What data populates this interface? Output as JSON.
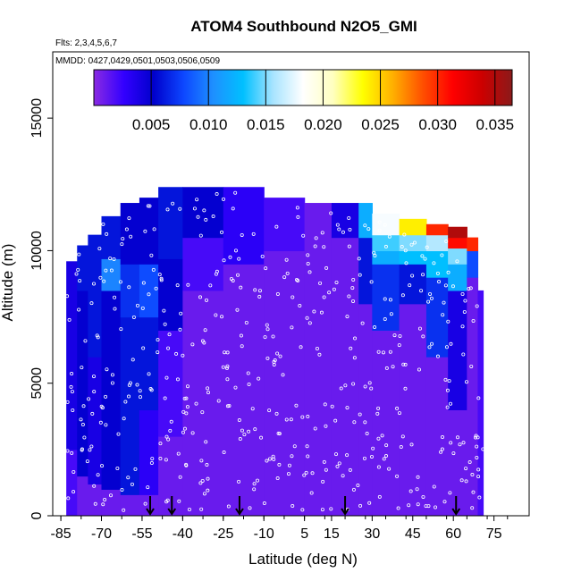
{
  "chart_data": {
    "type": "heatmap",
    "title": "ATOM4 Southbound N2O5_GMI",
    "subtitle_flights": "Flts: 2,3,4,5,6,7",
    "subtitle_dates": "MMDD: 0427,0429,0501,0503,0506,0509",
    "xlabel": "Latitude (deg N)",
    "ylabel": "Altitude (m)",
    "xlim": [
      -88,
      88
    ],
    "ylim": [
      0,
      17500
    ],
    "x_ticks": [
      -85,
      -70,
      -55,
      -40,
      -25,
      -10,
      5,
      15,
      30,
      45,
      60,
      75
    ],
    "x_tick_labels": [
      "-85",
      "-70",
      "-55",
      "-40",
      "-25",
      "-10",
      "5",
      "15",
      "30",
      "45",
      "60",
      "75"
    ],
    "y_ticks": [
      0,
      5000,
      10000,
      15000
    ],
    "y_tick_labels": [
      "0",
      "5000",
      "10000",
      "15000"
    ],
    "colorbar": {
      "range": [
        0.0,
        0.0365
      ],
      "ticks": [
        0.005,
        0.01,
        0.015,
        0.02,
        0.025,
        0.03,
        0.035
      ],
      "tick_labels": [
        "0.005",
        "0.010",
        "0.015",
        "0.020",
        "0.025",
        "0.030",
        "0.035"
      ],
      "colors": [
        "#8a2be2",
        "#3300ff",
        "#0000cc",
        "#0d47ff",
        "#1e90ff",
        "#00c0ff",
        "#a8e4ff",
        "#ffffff",
        "#ffffc0",
        "#ffff00",
        "#ffb000",
        "#ff5000",
        "#ff0000",
        "#cc0000",
        "#8b1a1a"
      ]
    },
    "profile_columns": [
      {
        "lat_min": -83,
        "lat_max": -79,
        "alt_max": 9600,
        "structure": [
          [
            0,
            2500,
            0.002
          ],
          [
            2500,
            9600,
            0.004
          ]
        ]
      },
      {
        "lat_min": -79,
        "lat_max": -75,
        "alt_max": 10200,
        "structure": [
          [
            0,
            1500,
            0.001
          ],
          [
            1500,
            8500,
            0.005
          ],
          [
            8500,
            10200,
            0.006
          ]
        ]
      },
      {
        "lat_min": -75,
        "lat_max": -70,
        "alt_max": 10600,
        "structure": [
          [
            0,
            1200,
            0.001
          ],
          [
            1200,
            6000,
            0.004
          ],
          [
            6000,
            10600,
            0.006
          ]
        ]
      },
      {
        "lat_min": -70,
        "lat_max": -63,
        "alt_max": 11300,
        "structure": [
          [
            0,
            1000,
            0.001
          ],
          [
            1000,
            8500,
            0.005
          ],
          [
            8500,
            9700,
            0.01
          ],
          [
            9700,
            11300,
            0.006
          ]
        ]
      },
      {
        "lat_min": -63,
        "lat_max": -56,
        "alt_max": 11800,
        "structure": [
          [
            0,
            800,
            0.001
          ],
          [
            800,
            7500,
            0.006
          ],
          [
            7500,
            9500,
            0.007
          ],
          [
            9500,
            11800,
            0.005
          ]
        ]
      },
      {
        "lat_min": -56,
        "lat_max": -49,
        "alt_max": 12000,
        "structure": [
          [
            0,
            800,
            0.001
          ],
          [
            800,
            4000,
            0.003
          ],
          [
            4000,
            7500,
            0.006
          ],
          [
            7500,
            9500,
            0.008
          ],
          [
            9500,
            12000,
            0.005
          ]
        ]
      },
      {
        "lat_min": -49,
        "lat_max": -40,
        "alt_max": 12400,
        "structure": [
          [
            0,
            3000,
            0.001
          ],
          [
            3000,
            7000,
            0.002
          ],
          [
            7000,
            9700,
            0.005
          ],
          [
            9700,
            12400,
            0.006
          ]
        ]
      },
      {
        "lat_min": -40,
        "lat_max": -25,
        "alt_max": 12400,
        "structure": [
          [
            0,
            8500,
            0.001
          ],
          [
            8500,
            10500,
            0.002
          ],
          [
            10500,
            12400,
            0.005
          ]
        ]
      },
      {
        "lat_min": -25,
        "lat_max": -10,
        "alt_max": 12400,
        "structure": [
          [
            0,
            9500,
            0.001
          ],
          [
            9500,
            12400,
            0.003
          ]
        ]
      },
      {
        "lat_min": -10,
        "lat_max": 5,
        "alt_max": 12000,
        "structure": [
          [
            0,
            10000,
            0.001
          ],
          [
            10000,
            12000,
            0.002
          ]
        ]
      },
      {
        "lat_min": 5,
        "lat_max": 15,
        "alt_max": 11800,
        "structure": [
          [
            0,
            11800,
            0.001
          ]
        ]
      },
      {
        "lat_min": 15,
        "lat_max": 25,
        "alt_max": 11800,
        "structure": [
          [
            0,
            10500,
            0.001
          ],
          [
            10500,
            11800,
            0.004
          ]
        ]
      },
      {
        "lat_min": 25,
        "lat_max": 30,
        "alt_max": 11800,
        "structure": [
          [
            0,
            8000,
            0.001
          ],
          [
            8000,
            10500,
            0.006
          ],
          [
            10500,
            11800,
            0.012
          ]
        ]
      },
      {
        "lat_min": 30,
        "lat_max": 40,
        "alt_max": 11400,
        "structure": [
          [
            0,
            7000,
            0.001
          ],
          [
            7000,
            9500,
            0.007
          ],
          [
            9500,
            10000,
            0.012
          ],
          [
            10000,
            10600,
            0.014
          ],
          [
            10600,
            11400,
            0.018
          ]
        ]
      },
      {
        "lat_min": 40,
        "lat_max": 50,
        "alt_max": 11200,
        "structure": [
          [
            0,
            8000,
            0.001
          ],
          [
            8000,
            9500,
            0.006
          ],
          [
            9500,
            10000,
            0.013
          ],
          [
            10000,
            10600,
            0.015
          ],
          [
            10600,
            11200,
            0.024
          ]
        ]
      },
      {
        "lat_min": 50,
        "lat_max": 58,
        "alt_max": 11000,
        "structure": [
          [
            0,
            6000,
            0.001
          ],
          [
            6000,
            9000,
            0.007
          ],
          [
            9000,
            10000,
            0.013
          ],
          [
            10000,
            10600,
            0.016
          ],
          [
            10600,
            11000,
            0.03
          ]
        ]
      },
      {
        "lat_min": 58,
        "lat_max": 65,
        "alt_max": 10900,
        "structure": [
          [
            0,
            4000,
            0.001
          ],
          [
            4000,
            8500,
            0.004
          ],
          [
            8500,
            9500,
            0.012
          ],
          [
            9500,
            10100,
            0.015
          ],
          [
            10100,
            10500,
            0.031
          ],
          [
            10500,
            10900,
            0.035
          ]
        ]
      },
      {
        "lat_min": 65,
        "lat_max": 69,
        "alt_max": 10500,
        "structure": [
          [
            0,
            9000,
            0.001
          ],
          [
            9000,
            10000,
            0.008
          ],
          [
            10000,
            10500,
            0.03
          ]
        ]
      },
      {
        "lat_min": 69,
        "lat_max": 71,
        "alt_max": 8500,
        "structure": [
          [
            0,
            8500,
            0.002
          ]
        ]
      }
    ],
    "flight_arrows_lat": [
      -52,
      -44,
      -19,
      20,
      61
    ],
    "observation_markers": "hollow white circles at sampled points along southbound flight tracks"
  }
}
